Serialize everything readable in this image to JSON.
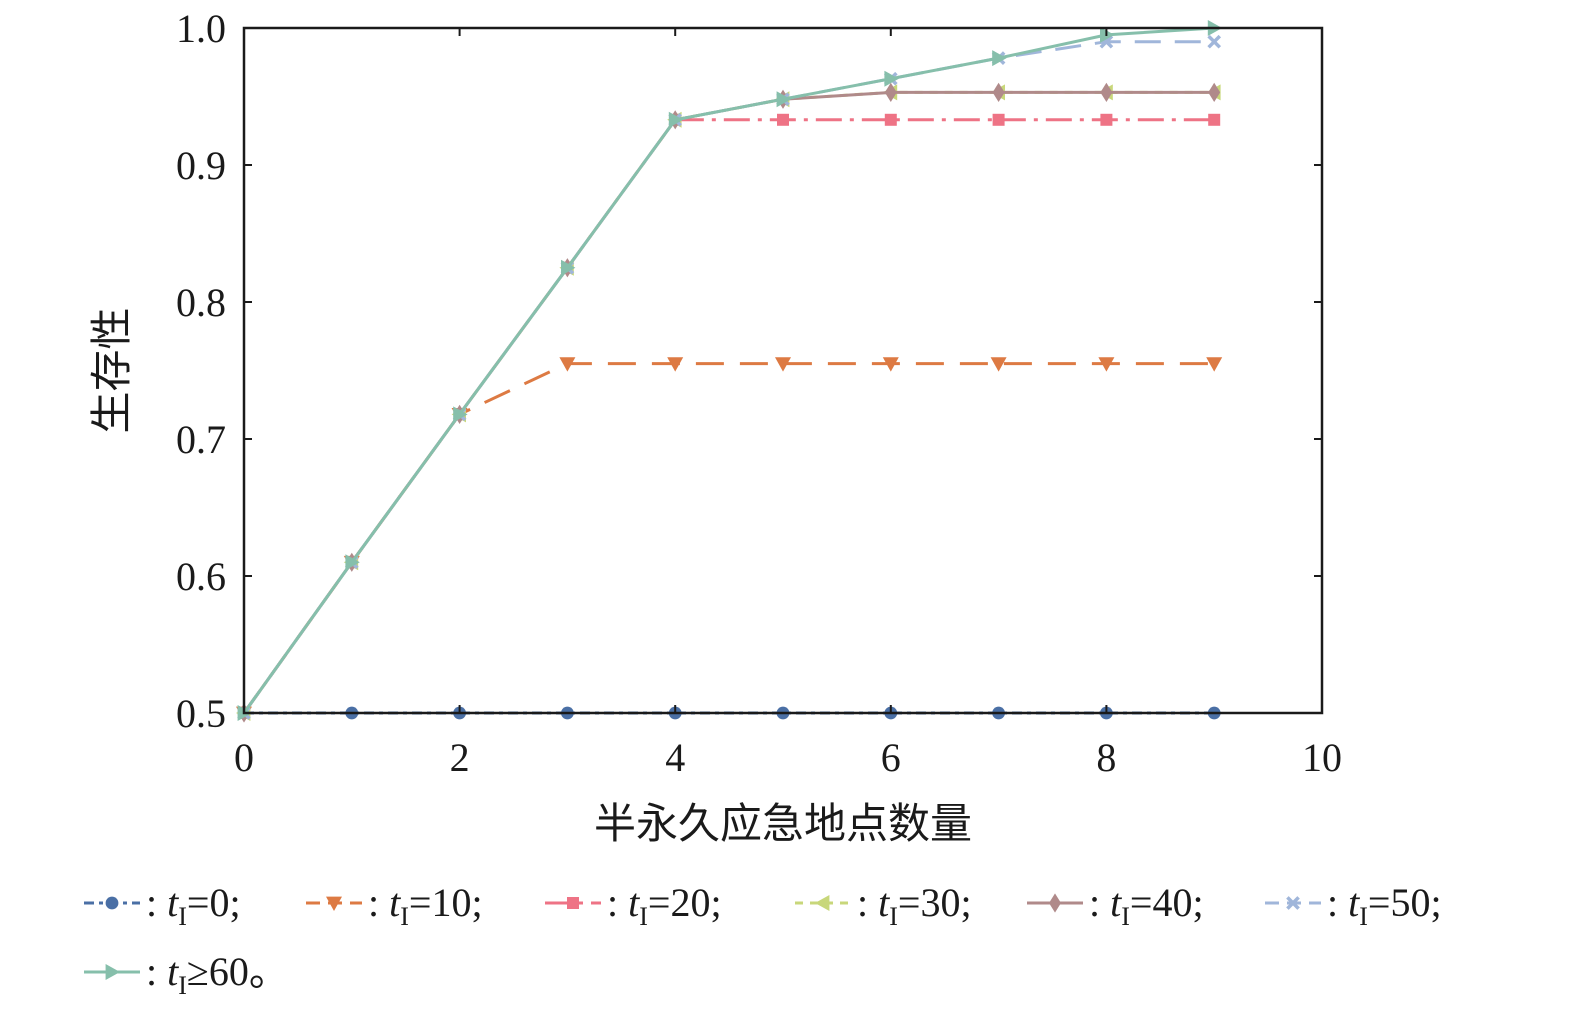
{
  "chart_data": {
    "type": "line",
    "xlabel": "半永久应急地点数量",
    "ylabel": "生存性",
    "xlim": [
      0,
      10
    ],
    "ylim": [
      0.5,
      1.0
    ],
    "xticks": [
      0,
      2,
      4,
      6,
      8,
      10
    ],
    "xtick_labels": [
      "0",
      "2",
      "4",
      "6",
      "8",
      "10"
    ],
    "yticks": [
      0.5,
      0.6,
      0.7,
      0.8,
      0.9,
      1.0
    ],
    "ytick_labels": [
      "0.5",
      "0.6",
      "0.7",
      "0.8",
      "0.9",
      "1.0"
    ],
    "grid": false,
    "legend_placement": "below",
    "x": [
      0,
      1,
      2,
      3,
      4,
      5,
      6,
      7,
      8,
      9
    ],
    "series": [
      {
        "name": "tI=0",
        "legend_prefix": ": ",
        "legend_var": "t",
        "legend_sub": "I",
        "legend_suffix": "=0;",
        "color": "#4a6fa5",
        "marker": "circle",
        "dash": "10,5,4,5",
        "values": [
          0.5,
          0.5,
          0.5,
          0.5,
          0.5,
          0.5,
          0.5,
          0.5,
          0.5,
          0.5
        ]
      },
      {
        "name": "tI=10",
        "legend_prefix": ": ",
        "legend_var": "t",
        "legend_sub": "I",
        "legend_suffix": "=10;",
        "color": "#dd7a43",
        "marker": "triangle-down",
        "dash": "28,16",
        "values": [
          0.5,
          0.61,
          0.718,
          0.755,
          0.755,
          0.755,
          0.755,
          0.755,
          0.755,
          0.755
        ]
      },
      {
        "name": "tI=20",
        "legend_prefix": ": ",
        "legend_var": "t",
        "legend_sub": "I",
        "legend_suffix": "=20;",
        "color": "#ee7385",
        "marker": "square",
        "dash": "26,8,4,8",
        "values": [
          0.5,
          0.61,
          0.718,
          0.825,
          0.933,
          0.933,
          0.933,
          0.933,
          0.933,
          0.933
        ]
      },
      {
        "name": "tI=30",
        "legend_prefix": ": ",
        "legend_var": "t",
        "legend_sub": "I",
        "legend_suffix": "=30;",
        "color": "#c8d77a",
        "marker": "triangle-left",
        "dash": "8,7",
        "values": [
          0.5,
          0.61,
          0.718,
          0.825,
          0.933,
          0.948,
          0.953,
          0.953,
          0.953,
          0.953
        ]
      },
      {
        "name": "tI=40",
        "legend_prefix": ": ",
        "legend_var": "t",
        "legend_sub": "I",
        "legend_suffix": "=40;",
        "color": "#b08a8a",
        "marker": "diamond",
        "dash": "",
        "values": [
          0.5,
          0.61,
          0.718,
          0.825,
          0.933,
          0.948,
          0.953,
          0.953,
          0.953,
          0.953
        ]
      },
      {
        "name": "tI=50",
        "legend_prefix": " : ",
        "legend_var": "t",
        "legend_sub": "I",
        "legend_suffix": "=50;",
        "color": "#a0b6da",
        "marker": "x",
        "dash": "26,14",
        "values": [
          0.5,
          0.61,
          0.718,
          0.825,
          0.933,
          0.948,
          0.963,
          0.978,
          0.99,
          0.99
        ]
      },
      {
        "name": "tI≥60",
        "legend_prefix": ": ",
        "legend_var": "t",
        "legend_sub": "I",
        "legend_suffix": "≥60。",
        "color": "#86bfab",
        "marker": "triangle-right",
        "dash": "",
        "values": [
          0.5,
          0.61,
          0.718,
          0.825,
          0.933,
          0.948,
          0.963,
          0.978,
          0.995,
          1.0
        ]
      }
    ]
  }
}
